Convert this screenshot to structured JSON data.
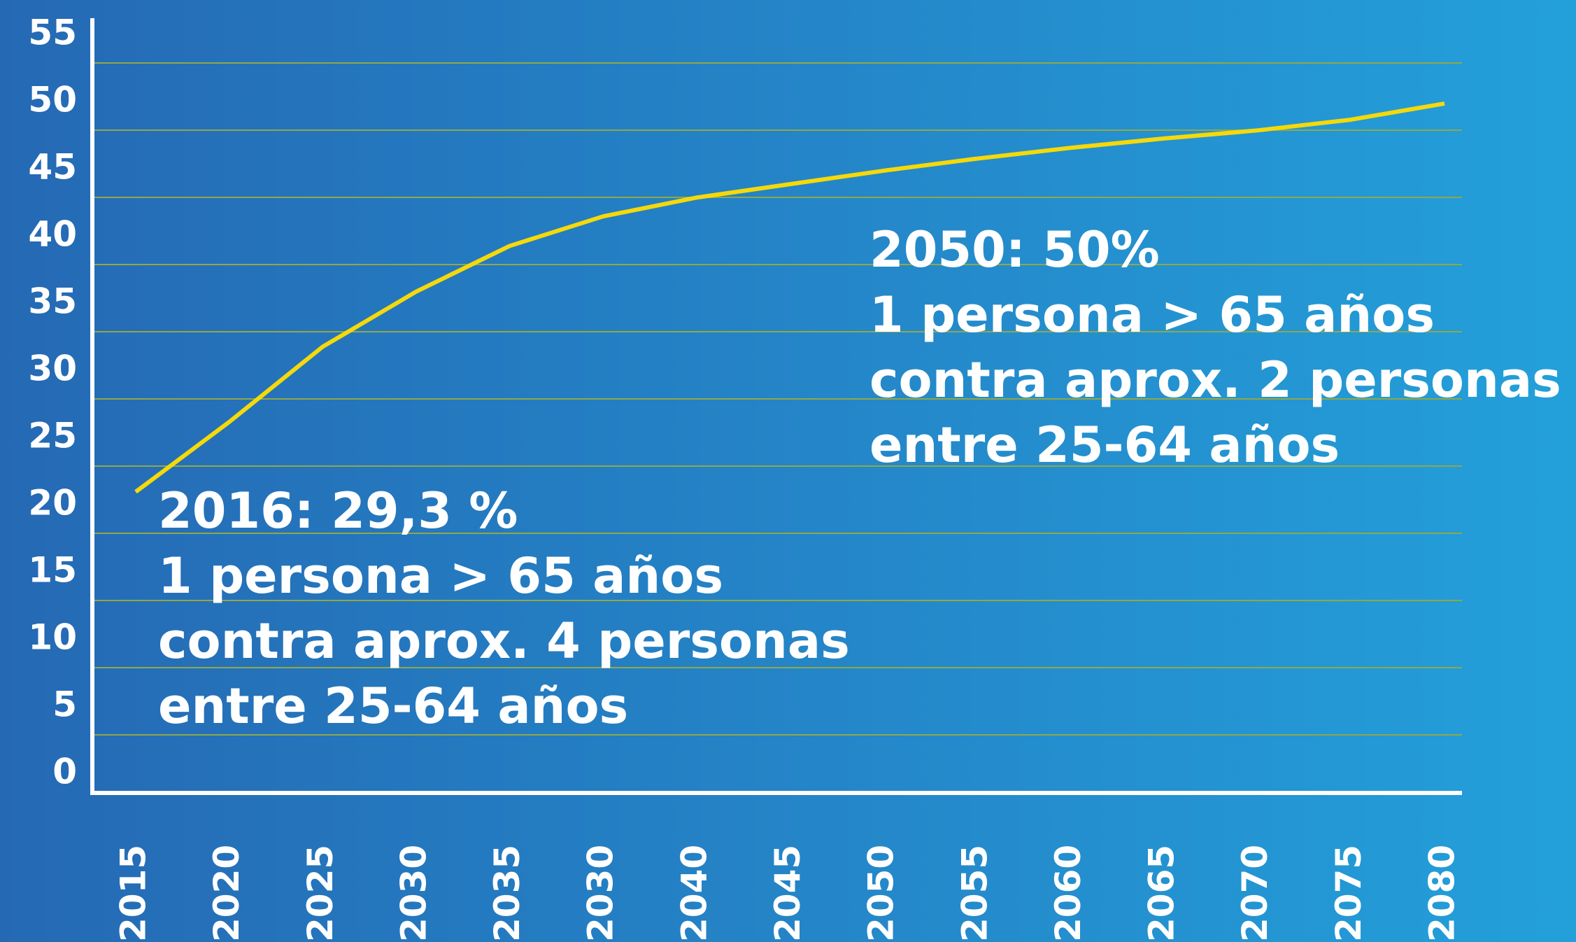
{
  "chart_data": {
    "type": "line",
    "categories": [
      "2015",
      "2020",
      "2025",
      "2030",
      "2035",
      "2030",
      "2040",
      "2045",
      "2050",
      "2055",
      "2060",
      "2065",
      "2070",
      "2075",
      "2080"
    ],
    "series": [
      {
        "color": "#f5d90a",
        "values": [
          21,
          26.2,
          31.8,
          35.9,
          39.3,
          41.5,
          42.9,
          43.9,
          44.9,
          45.8,
          46.6,
          47.3,
          47.9,
          48.7,
          49.9
        ]
      }
    ],
    "ylim": [
      0,
      55
    ],
    "yticks": [
      0,
      5,
      10,
      15,
      20,
      25,
      30,
      35,
      40,
      45,
      50,
      55
    ],
    "grid": true,
    "annotations": [
      {
        "lines": [
          "2016: 29,3 %",
          "1 persona > 65 años",
          "contra aprox. 4 personas",
          "entre 25-64 años"
        ]
      },
      {
        "lines": [
          "2050: 50%",
          "1 persona > 65 años",
          "contra aprox. 2 personas",
          "entre 25-64 años"
        ]
      }
    ]
  }
}
